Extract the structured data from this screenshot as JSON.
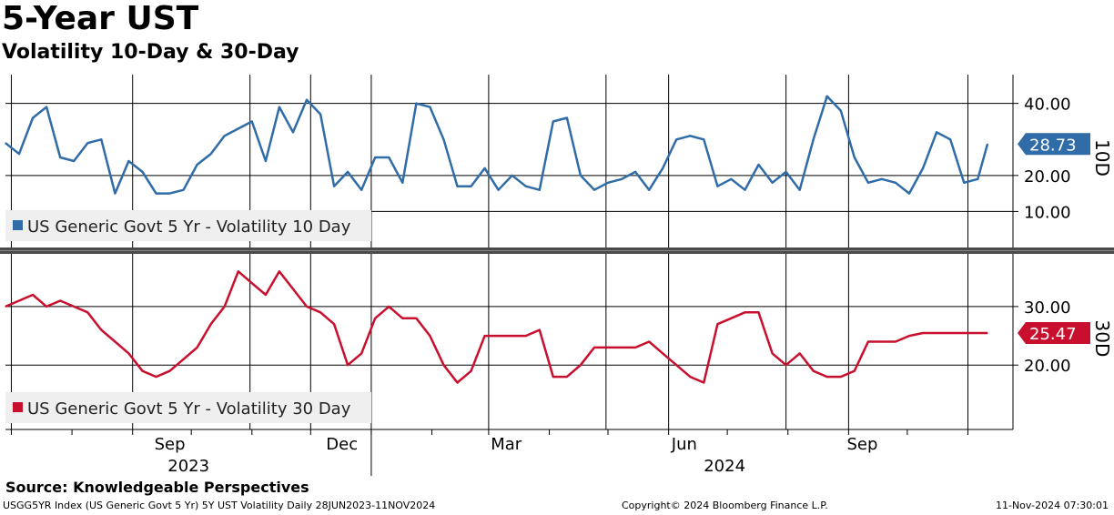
{
  "title": "5-Year UST",
  "subtitle": "Volatility 10-Day & 30-Day",
  "source": "Source: Knowledgeable Perspectives",
  "footer": {
    "left": "USGG5YR Index (US Generic Govt 5 Yr) 5Y UST Volatility  Daily 28JUN2023-11NOV2024",
    "center": "Copyright© 2024 Bloomberg Finance L.P.",
    "right": "11-Nov-2024 07:30:01"
  },
  "chart_data": [
    {
      "type": "line",
      "title": "",
      "ylabel": "10D",
      "ylim": [
        0,
        48
      ],
      "yticks": [
        10,
        20,
        40
      ],
      "ytick_labels": [
        "10.00",
        "20.00",
        "40.00"
      ],
      "grid": true,
      "legend": "bottom-left",
      "colors": {
        "line": "#2f6ca8",
        "last_badge": "#2f6ca8"
      },
      "series": [
        {
          "name": "US Generic Govt 5 Yr - Volatility 10 Day",
          "last_value_label": "28.73",
          "x": [
            "2023-06-28",
            "2023-07-05",
            "2023-07-12",
            "2023-07-19",
            "2023-07-26",
            "2023-08-02",
            "2023-08-09",
            "2023-08-16",
            "2023-08-23",
            "2023-08-30",
            "2023-09-06",
            "2023-09-13",
            "2023-09-20",
            "2023-09-27",
            "2023-10-04",
            "2023-10-11",
            "2023-10-18",
            "2023-10-25",
            "2023-11-01",
            "2023-11-08",
            "2023-11-15",
            "2023-11-22",
            "2023-11-29",
            "2023-12-06",
            "2023-12-13",
            "2023-12-20",
            "2023-12-27",
            "2024-01-03",
            "2024-01-10",
            "2024-01-17",
            "2024-01-24",
            "2024-01-31",
            "2024-02-07",
            "2024-02-14",
            "2024-02-21",
            "2024-02-28",
            "2024-03-06",
            "2024-03-13",
            "2024-03-20",
            "2024-03-27",
            "2024-04-03",
            "2024-04-10",
            "2024-04-17",
            "2024-04-24",
            "2024-05-01",
            "2024-05-08",
            "2024-05-15",
            "2024-05-22",
            "2024-05-29",
            "2024-06-05",
            "2024-06-12",
            "2024-06-19",
            "2024-06-26",
            "2024-07-03",
            "2024-07-10",
            "2024-07-17",
            "2024-07-24",
            "2024-07-31",
            "2024-08-07",
            "2024-08-14",
            "2024-08-21",
            "2024-08-28",
            "2024-09-04",
            "2024-09-11",
            "2024-09-18",
            "2024-09-25",
            "2024-10-02",
            "2024-10-09",
            "2024-10-16",
            "2024-10-23",
            "2024-10-30",
            "2024-11-06",
            "2024-11-11"
          ],
          "values": [
            29,
            26,
            36,
            39,
            25,
            24,
            29,
            30,
            15,
            24,
            21,
            15,
            15,
            16,
            23,
            26,
            31,
            33,
            35,
            24,
            39,
            32,
            41,
            37,
            17,
            21,
            16,
            25,
            25,
            18,
            40,
            39,
            30,
            17,
            17,
            22,
            16,
            20,
            17,
            16,
            35,
            36,
            20,
            16,
            18,
            19,
            21,
            16,
            22,
            30,
            31,
            30,
            17,
            19,
            16,
            23,
            18,
            21,
            16,
            30,
            42,
            38,
            25,
            18,
            19,
            18,
            15,
            22,
            32,
            30,
            18,
            19,
            28.73
          ]
        }
      ]
    },
    {
      "type": "line",
      "title": "",
      "ylabel": "30D",
      "xlabel": "",
      "ylim": [
        9,
        39
      ],
      "yticks": [
        20,
        30
      ],
      "ytick_labels": [
        "20.00",
        "30.00"
      ],
      "xtick_labels": [
        "Sep",
        "Dec",
        "Mar",
        "Jun",
        "Sep"
      ],
      "year_labels": [
        "2023",
        "2024"
      ],
      "grid": true,
      "legend": "bottom-left",
      "colors": {
        "line": "#c8102e",
        "last_badge": "#c8102e"
      },
      "series": [
        {
          "name": "US Generic Govt 5 Yr - Volatility 30 Day",
          "last_value_label": "25.47",
          "x": [
            "2023-06-28",
            "2023-07-05",
            "2023-07-12",
            "2023-07-19",
            "2023-07-26",
            "2023-08-02",
            "2023-08-09",
            "2023-08-16",
            "2023-08-23",
            "2023-08-30",
            "2023-09-06",
            "2023-09-13",
            "2023-09-20",
            "2023-09-27",
            "2023-10-04",
            "2023-10-11",
            "2023-10-18",
            "2023-10-25",
            "2023-11-01",
            "2023-11-08",
            "2023-11-15",
            "2023-11-22",
            "2023-11-29",
            "2023-12-06",
            "2023-12-13",
            "2023-12-20",
            "2023-12-27",
            "2024-01-03",
            "2024-01-10",
            "2024-01-17",
            "2024-01-24",
            "2024-01-31",
            "2024-02-07",
            "2024-02-14",
            "2024-02-21",
            "2024-02-28",
            "2024-03-06",
            "2024-03-13",
            "2024-03-20",
            "2024-03-27",
            "2024-04-03",
            "2024-04-10",
            "2024-04-17",
            "2024-04-24",
            "2024-05-01",
            "2024-05-08",
            "2024-05-15",
            "2024-05-22",
            "2024-05-29",
            "2024-06-05",
            "2024-06-12",
            "2024-06-19",
            "2024-06-26",
            "2024-07-03",
            "2024-07-10",
            "2024-07-17",
            "2024-07-24",
            "2024-07-31",
            "2024-08-07",
            "2024-08-14",
            "2024-08-21",
            "2024-08-28",
            "2024-09-04",
            "2024-09-11",
            "2024-09-18",
            "2024-09-25",
            "2024-10-02",
            "2024-10-09",
            "2024-10-16",
            "2024-10-23",
            "2024-10-30",
            "2024-11-06",
            "2024-11-11"
          ],
          "values": [
            30,
            31,
            32,
            30,
            31,
            30,
            29,
            26,
            24,
            22,
            19,
            18,
            19,
            21,
            23,
            27,
            30,
            36,
            34,
            32,
            36,
            33,
            30,
            29,
            27,
            20,
            22,
            28,
            30,
            28,
            28,
            25,
            20,
            17,
            19,
            25,
            25,
            25,
            25,
            26,
            18,
            18,
            20,
            23,
            23,
            23,
            23,
            24,
            22,
            20,
            18,
            17,
            27,
            28,
            29,
            29,
            22,
            20,
            22,
            19,
            18,
            18,
            19,
            24,
            24,
            24,
            25,
            25.47,
            25.47,
            25.47,
            25.47,
            25.47,
            25.47
          ]
        }
      ]
    }
  ]
}
